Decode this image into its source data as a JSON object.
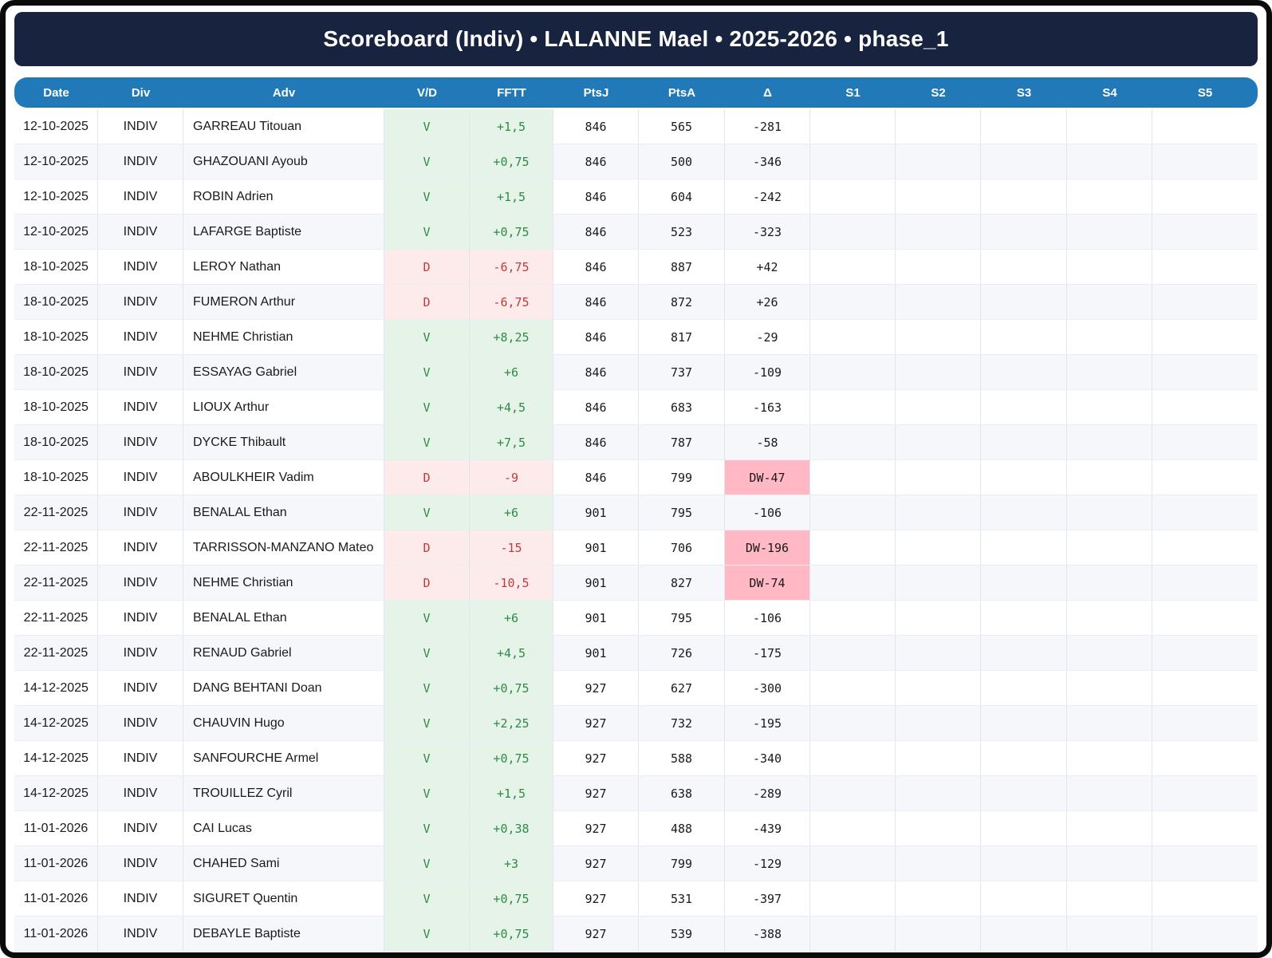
{
  "title": "Scoreboard (Indiv) • LALANNE Mael • 2025-2026 • phase_1",
  "colors": {
    "title_bar": "#17233f",
    "header": "#2279b8",
    "win_bg": "#e6f3e9",
    "win_text": "#2e8b45",
    "loss_bg": "#fdeaea",
    "loss_text": "#c23b3b",
    "dw_bg": "#ffb8c4",
    "row_alt": "#f5f7fa",
    "border": "#dfe6f0"
  },
  "table": {
    "columns": [
      "Date",
      "Div",
      "Adv",
      "V/D",
      "FFTT",
      "PtsJ",
      "PtsA",
      "Δ",
      "S1",
      "S2",
      "S3",
      "S4",
      "S5"
    ],
    "rows": [
      {
        "date": "12-10-2025",
        "div": "INDIV",
        "adv": "GARREAU Titouan",
        "vd": "V",
        "fftt": "+1,5",
        "ptsj": "846",
        "ptsa": "565",
        "delta": "-281"
      },
      {
        "date": "12-10-2025",
        "div": "INDIV",
        "adv": "GHAZOUANI Ayoub",
        "vd": "V",
        "fftt": "+0,75",
        "ptsj": "846",
        "ptsa": "500",
        "delta": "-346"
      },
      {
        "date": "12-10-2025",
        "div": "INDIV",
        "adv": "ROBIN Adrien",
        "vd": "V",
        "fftt": "+1,5",
        "ptsj": "846",
        "ptsa": "604",
        "delta": "-242"
      },
      {
        "date": "12-10-2025",
        "div": "INDIV",
        "adv": "LAFARGE Baptiste",
        "vd": "V",
        "fftt": "+0,75",
        "ptsj": "846",
        "ptsa": "523",
        "delta": "-323"
      },
      {
        "date": "18-10-2025",
        "div": "INDIV",
        "adv": "LEROY Nathan",
        "vd": "D",
        "fftt": "-6,75",
        "ptsj": "846",
        "ptsa": "887",
        "delta": "+42"
      },
      {
        "date": "18-10-2025",
        "div": "INDIV",
        "adv": "FUMERON Arthur",
        "vd": "D",
        "fftt": "-6,75",
        "ptsj": "846",
        "ptsa": "872",
        "delta": "+26"
      },
      {
        "date": "18-10-2025",
        "div": "INDIV",
        "adv": "NEHME Christian",
        "vd": "V",
        "fftt": "+8,25",
        "ptsj": "846",
        "ptsa": "817",
        "delta": "-29"
      },
      {
        "date": "18-10-2025",
        "div": "INDIV",
        "adv": "ESSAYAG Gabriel",
        "vd": "V",
        "fftt": "+6",
        "ptsj": "846",
        "ptsa": "737",
        "delta": "-109"
      },
      {
        "date": "18-10-2025",
        "div": "INDIV",
        "adv": "LIOUX Arthur",
        "vd": "V",
        "fftt": "+4,5",
        "ptsj": "846",
        "ptsa": "683",
        "delta": "-163"
      },
      {
        "date": "18-10-2025",
        "div": "INDIV",
        "adv": "DYCKE Thibault",
        "vd": "V",
        "fftt": "+7,5",
        "ptsj": "846",
        "ptsa": "787",
        "delta": "-58"
      },
      {
        "date": "18-10-2025",
        "div": "INDIV",
        "adv": "ABOULKHEIR Vadim",
        "vd": "D",
        "fftt": "-9",
        "ptsj": "846",
        "ptsa": "799",
        "delta": "DW-47"
      },
      {
        "date": "22-11-2025",
        "div": "INDIV",
        "adv": "BENALAL Ethan",
        "vd": "V",
        "fftt": "+6",
        "ptsj": "901",
        "ptsa": "795",
        "delta": "-106"
      },
      {
        "date": "22-11-2025",
        "div": "INDIV",
        "adv": "TARRISSON-MANZANO Mateo",
        "vd": "D",
        "fftt": "-15",
        "ptsj": "901",
        "ptsa": "706",
        "delta": "DW-196"
      },
      {
        "date": "22-11-2025",
        "div": "INDIV",
        "adv": "NEHME Christian",
        "vd": "D",
        "fftt": "-10,5",
        "ptsj": "901",
        "ptsa": "827",
        "delta": "DW-74"
      },
      {
        "date": "22-11-2025",
        "div": "INDIV",
        "adv": "BENALAL Ethan",
        "vd": "V",
        "fftt": "+6",
        "ptsj": "901",
        "ptsa": "795",
        "delta": "-106"
      },
      {
        "date": "22-11-2025",
        "div": "INDIV",
        "adv": "RENAUD Gabriel",
        "vd": "V",
        "fftt": "+4,5",
        "ptsj": "901",
        "ptsa": "726",
        "delta": "-175"
      },
      {
        "date": "14-12-2025",
        "div": "INDIV",
        "adv": "DANG BEHTANI Doan",
        "vd": "V",
        "fftt": "+0,75",
        "ptsj": "927",
        "ptsa": "627",
        "delta": "-300"
      },
      {
        "date": "14-12-2025",
        "div": "INDIV",
        "adv": "CHAUVIN Hugo",
        "vd": "V",
        "fftt": "+2,25",
        "ptsj": "927",
        "ptsa": "732",
        "delta": "-195"
      },
      {
        "date": "14-12-2025",
        "div": "INDIV",
        "adv": "SANFOURCHE Armel",
        "vd": "V",
        "fftt": "+0,75",
        "ptsj": "927",
        "ptsa": "588",
        "delta": "-340"
      },
      {
        "date": "14-12-2025",
        "div": "INDIV",
        "adv": "TROUILLEZ Cyril",
        "vd": "V",
        "fftt": "+1,5",
        "ptsj": "927",
        "ptsa": "638",
        "delta": "-289"
      },
      {
        "date": "11-01-2026",
        "div": "INDIV",
        "adv": "CAI Lucas",
        "vd": "V",
        "fftt": "+0,38",
        "ptsj": "927",
        "ptsa": "488",
        "delta": "-439"
      },
      {
        "date": "11-01-2026",
        "div": "INDIV",
        "adv": "CHAHED Sami",
        "vd": "V",
        "fftt": "+3",
        "ptsj": "927",
        "ptsa": "799",
        "delta": "-129"
      },
      {
        "date": "11-01-2026",
        "div": "INDIV",
        "adv": "SIGURET Quentin",
        "vd": "V",
        "fftt": "+0,75",
        "ptsj": "927",
        "ptsa": "531",
        "delta": "-397"
      },
      {
        "date": "11-01-2026",
        "div": "INDIV",
        "adv": "DEBAYLE Baptiste",
        "vd": "V",
        "fftt": "+0,75",
        "ptsj": "927",
        "ptsa": "539",
        "delta": "-388"
      }
    ]
  }
}
